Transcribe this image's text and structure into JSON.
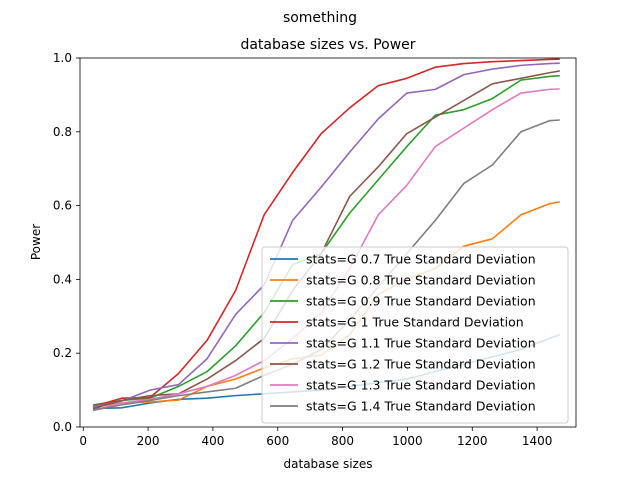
{
  "chart_data": {
    "type": "line",
    "suptitle": "something",
    "title": "database sizes vs. Power",
    "xlabel": "database sizes",
    "ylabel": "Power",
    "xlim": [
      -10,
      1520
    ],
    "ylim": [
      0,
      1.0
    ],
    "xticks": [
      0,
      200,
      400,
      600,
      800,
      1000,
      1200,
      1400
    ],
    "yticks": [
      0.0,
      0.2,
      0.4,
      0.6,
      0.8,
      1.0
    ],
    "xtick_labels": [
      "0",
      "200",
      "400",
      "600",
      "800",
      "1000",
      "1200",
      "1400"
    ],
    "ytick_labels": [
      "0.0",
      "0.2",
      "0.4",
      "0.6",
      "0.8",
      "1.0"
    ],
    "grid": false,
    "legend_position": "lower-right",
    "x": [
      30,
      118,
      206,
      294,
      382,
      470,
      558,
      646,
      734,
      822,
      910,
      998,
      1086,
      1174,
      1262,
      1350,
      1438,
      1470
    ],
    "series": [
      {
        "name": "stats=G 0.7 True Standard Deviation",
        "color": "#1f77b4",
        "values": [
          0.05,
          0.052,
          0.065,
          0.075,
          0.078,
          0.085,
          0.09,
          0.095,
          0.1,
          0.11,
          0.12,
          0.13,
          0.15,
          0.17,
          0.19,
          0.21,
          0.24,
          0.25
        ]
      },
      {
        "name": "stats=G 0.8 True Standard Deviation",
        "color": "#ff7f0e",
        "values": [
          0.055,
          0.065,
          0.068,
          0.073,
          0.11,
          0.13,
          0.16,
          0.185,
          0.195,
          0.25,
          0.36,
          0.4,
          0.43,
          0.49,
          0.51,
          0.575,
          0.605,
          0.61
        ]
      },
      {
        "name": "stats=G 0.9 True Standard Deviation",
        "color": "#2ca02c",
        "values": [
          0.06,
          0.072,
          0.078,
          0.11,
          0.15,
          0.22,
          0.31,
          0.44,
          0.47,
          0.58,
          0.67,
          0.76,
          0.845,
          0.86,
          0.89,
          0.94,
          0.95,
          0.952
        ]
      },
      {
        "name": "stats=G 1 True Standard Deviation",
        "color": "#d62728",
        "values": [
          0.055,
          0.078,
          0.08,
          0.145,
          0.235,
          0.37,
          0.575,
          0.69,
          0.795,
          0.865,
          0.925,
          0.945,
          0.975,
          0.985,
          0.99,
          0.993,
          0.996,
          0.997
        ]
      },
      {
        "name": "stats=G 1.1 True Standard Deviation",
        "color": "#9467bd",
        "values": [
          0.055,
          0.07,
          0.1,
          0.115,
          0.185,
          0.305,
          0.385,
          0.56,
          0.65,
          0.745,
          0.835,
          0.905,
          0.915,
          0.955,
          0.97,
          0.98,
          0.985,
          0.986
        ]
      },
      {
        "name": "stats=G 1.2 True Standard Deviation",
        "color": "#8c564b",
        "values": [
          0.05,
          0.072,
          0.085,
          0.09,
          0.13,
          0.18,
          0.24,
          0.37,
          0.47,
          0.625,
          0.705,
          0.795,
          0.84,
          0.885,
          0.93,
          0.945,
          0.96,
          0.965
        ]
      },
      {
        "name": "stats=G 1.3 True Standard Deviation",
        "color": "#e377c2",
        "values": [
          0.045,
          0.065,
          0.075,
          0.09,
          0.11,
          0.14,
          0.18,
          0.24,
          0.31,
          0.43,
          0.575,
          0.655,
          0.76,
          0.81,
          0.86,
          0.905,
          0.915,
          0.916
        ]
      },
      {
        "name": "stats=G 1.4 True Standard Deviation",
        "color": "#7f7f7f",
        "values": [
          0.045,
          0.06,
          0.072,
          0.085,
          0.095,
          0.105,
          0.14,
          0.17,
          0.21,
          0.29,
          0.38,
          0.47,
          0.56,
          0.66,
          0.71,
          0.8,
          0.83,
          0.832
        ]
      }
    ]
  }
}
